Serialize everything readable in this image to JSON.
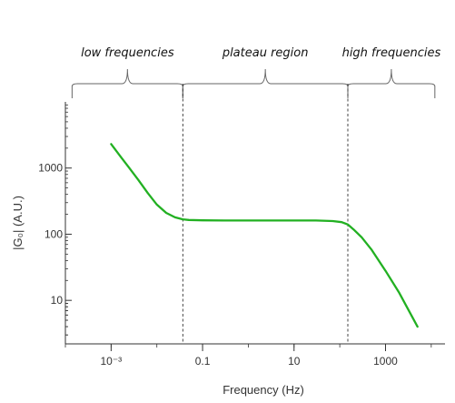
{
  "chart_data": {
    "type": "line",
    "x_scale": "log",
    "y_scale": "log",
    "xlabel": "Frequency (Hz)",
    "ylabel": "|G₀| (A.U.)",
    "xlim": [
      0.0001,
      20000
    ],
    "ylim": [
      2.2,
      10000
    ],
    "x_ticks": [
      {
        "value": 0.001,
        "label": "10⁻³"
      },
      {
        "value": 0.1,
        "label": "0.1"
      },
      {
        "value": 10,
        "label": "10"
      },
      {
        "value": 1000,
        "label": "1000"
      }
    ],
    "y_ticks": [
      {
        "value": 10,
        "label": "10"
      },
      {
        "value": 100,
        "label": "100"
      },
      {
        "value": 1000,
        "label": "1000"
      }
    ],
    "grid": false,
    "line_color": "#22b022",
    "regions": [
      {
        "label": "low frequencies",
        "from": 0.00014,
        "to": 0.037
      },
      {
        "label": "plateau region",
        "from": 0.037,
        "to": 150
      },
      {
        "label": "high frequencies",
        "from": 150,
        "to": 12000
      }
    ],
    "dividers": [
      0.037,
      150
    ],
    "series": [
      {
        "x": [
          0.001,
          0.0016,
          0.0025,
          0.004,
          0.0063,
          0.01,
          0.016,
          0.025,
          0.037,
          0.05,
          0.1,
          0.3,
          1,
          3,
          10,
          30,
          70,
          110,
          150,
          200,
          300,
          500,
          1000,
          2000,
          5000
        ],
        "values": [
          2300,
          1500,
          1000,
          650,
          420,
          280,
          210,
          180,
          168,
          164,
          162,
          161,
          161,
          161,
          161,
          161,
          158,
          152,
          140,
          118,
          90,
          58,
          28,
          13,
          4
        ]
      }
    ]
  }
}
